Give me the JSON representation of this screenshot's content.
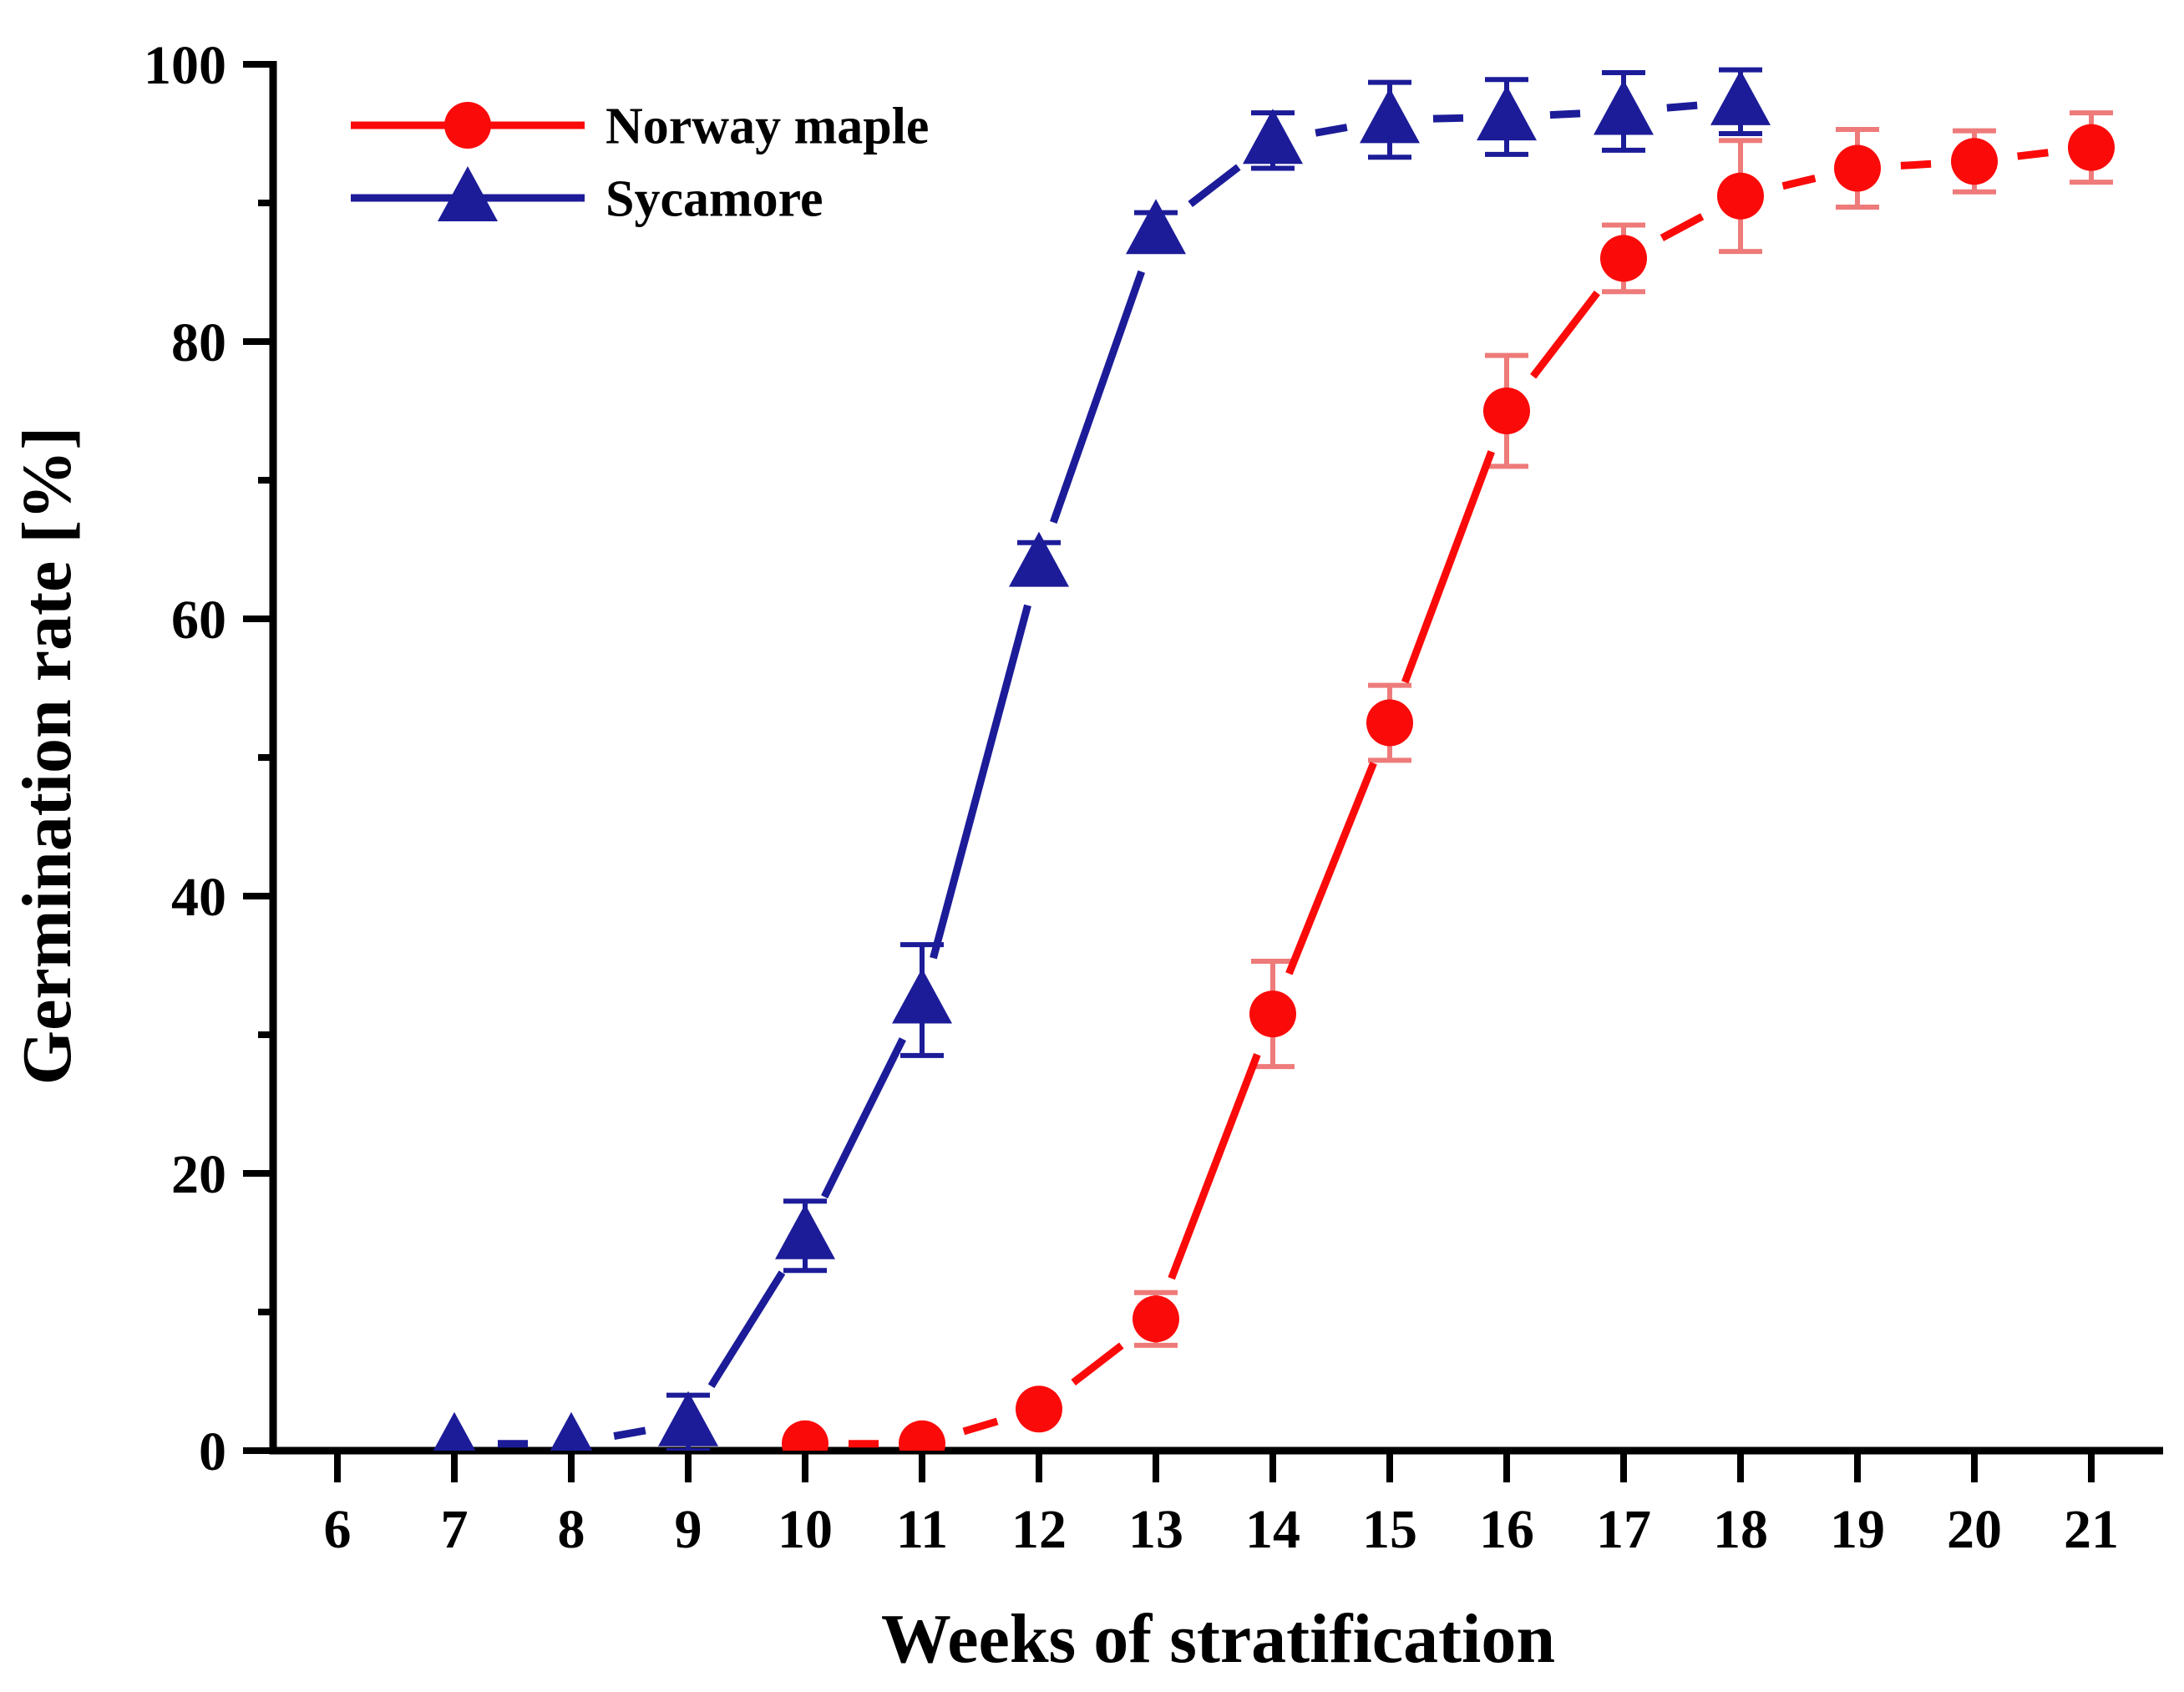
{
  "figure": {
    "background": "#ffffff",
    "text_color": "#000000"
  },
  "chart_data": {
    "type": "line",
    "title": "",
    "xlabel": "Weeks of stratification",
    "ylabel": "Germination rate [%]",
    "xlim": [
      5.45,
      21.62
    ],
    "ylim": [
      0,
      100
    ],
    "grid": false,
    "legend_position": "upper-left",
    "x_ticks": [
      6,
      7,
      8,
      9,
      10,
      11,
      12,
      13,
      14,
      15,
      16,
      17,
      18,
      19,
      20,
      21
    ],
    "y_major_ticks": [
      0,
      20,
      40,
      60,
      80,
      100
    ],
    "y_minor_ticks": [
      10,
      30,
      50,
      70,
      90
    ],
    "series": [
      {
        "name": "Norway maple",
        "marker": "circle",
        "color": "#fb0a0a",
        "errbar_color": "#ee7a7a",
        "x": [
          10,
          11,
          12,
          13,
          14,
          15,
          16,
          17,
          18,
          19,
          20,
          21
        ],
        "y": [
          0.5,
          0.5,
          3,
          9.5,
          31.5,
          52.5,
          75,
          86,
          90.5,
          92.5,
          93,
          94
        ],
        "err": [
          0,
          0,
          0,
          1.9,
          3.8,
          2.7,
          4,
          2.4,
          4,
          2.8,
          2.2,
          2.5
        ]
      },
      {
        "name": "Sycamore",
        "marker": "triangle",
        "color": "#1c1c99",
        "errbar_color": "#1c1c99",
        "x": [
          7,
          8,
          9,
          10,
          11,
          12,
          13,
          14,
          15,
          16,
          17,
          18
        ],
        "y": [
          0.5,
          0.5,
          2,
          15.5,
          32.5,
          64,
          88,
          94.5,
          96,
          96.2,
          96.6,
          97.3
        ],
        "err": [
          0,
          0,
          2,
          2.5,
          4,
          1.5,
          1.3,
          2,
          2.7,
          2.7,
          2.8,
          2.3
        ]
      }
    ]
  }
}
